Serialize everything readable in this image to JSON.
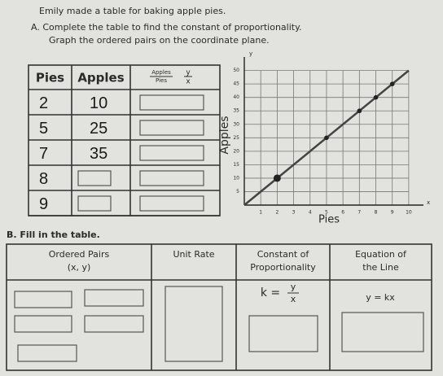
{
  "intro": "Emily made a table for baking apple pies.",
  "part_a": {
    "line1": "A. Complete the table to find the constant of proportionality.",
    "line2": "Graph the ordered pairs on the coordinate plane."
  },
  "table_a": {
    "headers": [
      "Pies",
      "Apples"
    ],
    "ratio_header": {
      "top": "Apples",
      "bottom": "Pies",
      "num": "y",
      "den": "x"
    },
    "rows": [
      [
        "2",
        "10"
      ],
      [
        "5",
        "25"
      ],
      [
        "7",
        "35"
      ],
      [
        "8"
      ],
      [
        "9"
      ]
    ]
  },
  "graph": {
    "y_label": "Apples",
    "x_label": "Pies",
    "x_axis_letter": "x",
    "y_axis_letter": "y",
    "xlim": [
      0,
      10.5
    ],
    "ylim": [
      0,
      52
    ],
    "xticks": [
      1,
      2,
      3,
      4,
      5,
      6,
      7,
      8,
      9,
      10
    ],
    "yticks": [
      5,
      10,
      15,
      20,
      25,
      30,
      35,
      40,
      45,
      50
    ],
    "points": [
      {
        "x": 2,
        "y": 10
      },
      {
        "x": 5,
        "y": 25
      },
      {
        "x": 7,
        "y": 35
      },
      {
        "x": 8,
        "y": 40
      },
      {
        "x": 9,
        "y": 45
      }
    ]
  },
  "part_b": "B. Fill in the table.",
  "table_b": {
    "headers": [
      [
        "Ordered Pairs",
        "(x, y)"
      ],
      [
        "Unit Rate"
      ],
      [
        "Constant of",
        "Proportionality"
      ],
      [
        "Equation of",
        "the Line"
      ]
    ],
    "k_formula": {
      "k": "k =",
      "num": "y",
      "den": "x"
    },
    "equation": "y = kx"
  }
}
